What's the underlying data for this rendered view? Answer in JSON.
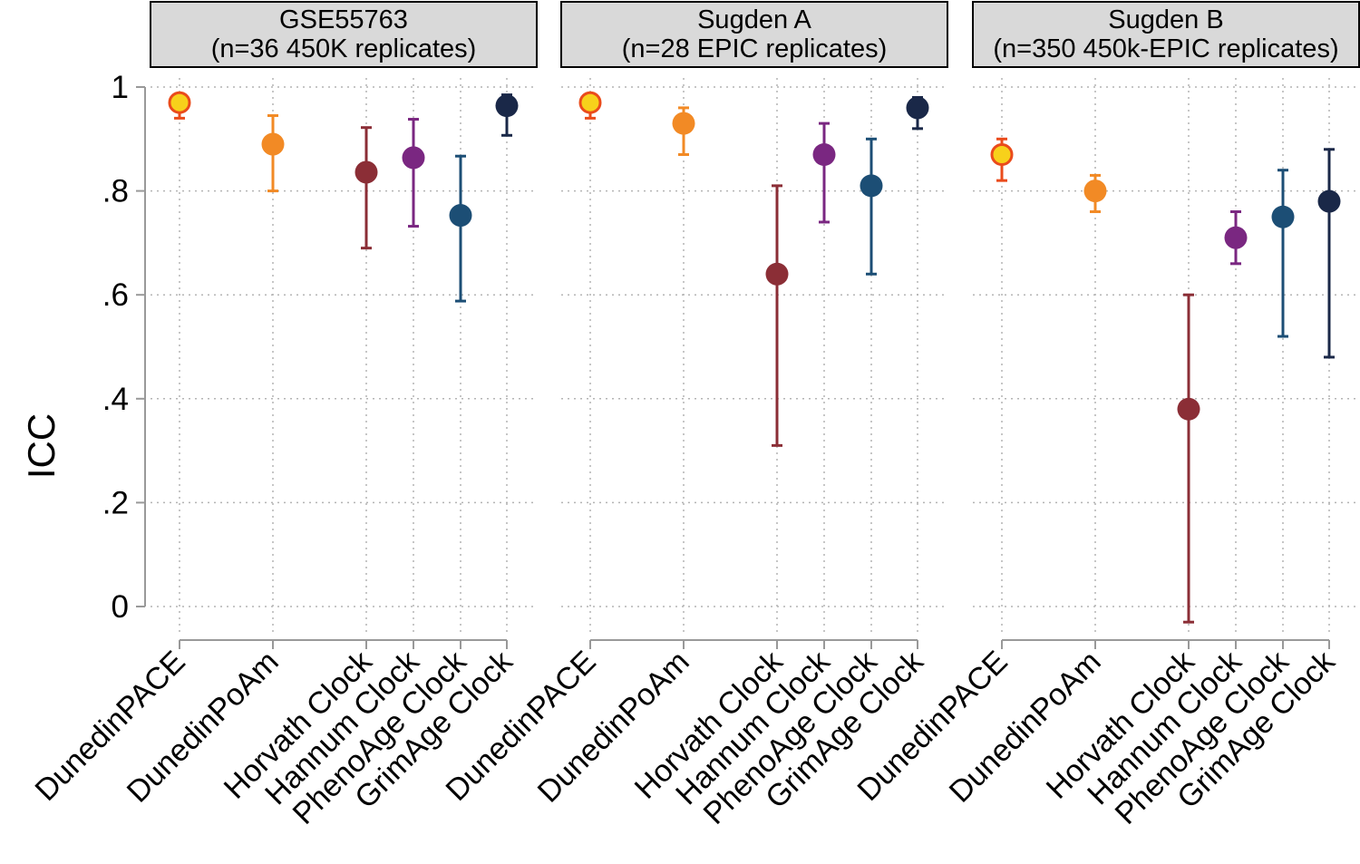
{
  "chart_data": {
    "type": "scatter",
    "subtype": "point estimate with error bars (multi-panel)",
    "ylabel": "ICC",
    "ylim": [
      -0.06,
      1.0
    ],
    "yticks": [
      {
        "value": 0,
        "label": "0"
      },
      {
        "value": 0.2,
        "label": ".2"
      },
      {
        "value": 0.4,
        "label": ".4"
      },
      {
        "value": 0.6,
        "label": ".6"
      },
      {
        "value": 0.8,
        "label": ".8"
      },
      {
        "value": 1,
        "label": "1"
      }
    ],
    "grid": true,
    "categories": [
      "DunedinPACE",
      "DunedinPoAm",
      "Horvath Clock",
      "Hannum Clock",
      "PhenoAge Clock",
      "GrimAge Clock"
    ],
    "colors": {
      "DunedinPACE": {
        "fill": "#f7d11b",
        "stroke": "#ea4b1b"
      },
      "DunedinPoAm": {
        "fill": "#f28a25",
        "stroke": "#f28a25"
      },
      "Horvath Clock": {
        "fill": "#8b2e36",
        "stroke": "#8b2e36"
      },
      "Hannum Clock": {
        "fill": "#7a2781",
        "stroke": "#7a2781"
      },
      "PhenoAge Clock": {
        "fill": "#1c4e75",
        "stroke": "#1c4e75"
      },
      "GrimAge Clock": {
        "fill": "#1a2848",
        "stroke": "#1a2848"
      }
    },
    "panels": [
      {
        "title_line1": "GSE55763",
        "title_line2": "(n=36 450K replicates)",
        "points": [
          {
            "name": "DunedinPACE",
            "value": 0.97,
            "lower": 0.94,
            "upper": 0.98
          },
          {
            "name": "DunedinPoAm",
            "value": 0.89,
            "lower": 0.8,
            "upper": 0.945
          },
          {
            "name": "Horvath Clock",
            "value": 0.836,
            "lower": 0.69,
            "upper": 0.922
          },
          {
            "name": "Hannum Clock",
            "value": 0.864,
            "lower": 0.732,
            "upper": 0.938
          },
          {
            "name": "PhenoAge Clock",
            "value": 0.753,
            "lower": 0.588,
            "upper": 0.867
          },
          {
            "name": "GrimAge Clock",
            "value": 0.964,
            "lower": 0.907,
            "upper": 0.985
          }
        ]
      },
      {
        "title_line1": "Sugden A",
        "title_line2": "(n=28 EPIC replicates)",
        "points": [
          {
            "name": "DunedinPACE",
            "value": 0.97,
            "lower": 0.94,
            "upper": 0.98
          },
          {
            "name": "DunedinPoAm",
            "value": 0.93,
            "lower": 0.87,
            "upper": 0.96
          },
          {
            "name": "Horvath Clock",
            "value": 0.64,
            "lower": 0.31,
            "upper": 0.81
          },
          {
            "name": "Hannum Clock",
            "value": 0.87,
            "lower": 0.74,
            "upper": 0.93
          },
          {
            "name": "PhenoAge Clock",
            "value": 0.81,
            "lower": 0.64,
            "upper": 0.9
          },
          {
            "name": "GrimAge Clock",
            "value": 0.96,
            "lower": 0.92,
            "upper": 0.98
          }
        ]
      },
      {
        "title_line1": "Sugden B",
        "title_line2": "(n=350 450k-EPIC replicates)",
        "points": [
          {
            "name": "DunedinPACE",
            "value": 0.87,
            "lower": 0.82,
            "upper": 0.9
          },
          {
            "name": "DunedinPoAm",
            "value": 0.8,
            "lower": 0.76,
            "upper": 0.83
          },
          {
            "name": "Horvath Clock",
            "value": 0.38,
            "lower": -0.03,
            "upper": 0.6
          },
          {
            "name": "Hannum Clock",
            "value": 0.71,
            "lower": 0.66,
            "upper": 0.76
          },
          {
            "name": "PhenoAge Clock",
            "value": 0.75,
            "lower": 0.52,
            "upper": 0.84
          },
          {
            "name": "GrimAge Clock",
            "value": 0.78,
            "lower": 0.48,
            "upper": 0.88
          }
        ]
      }
    ]
  }
}
